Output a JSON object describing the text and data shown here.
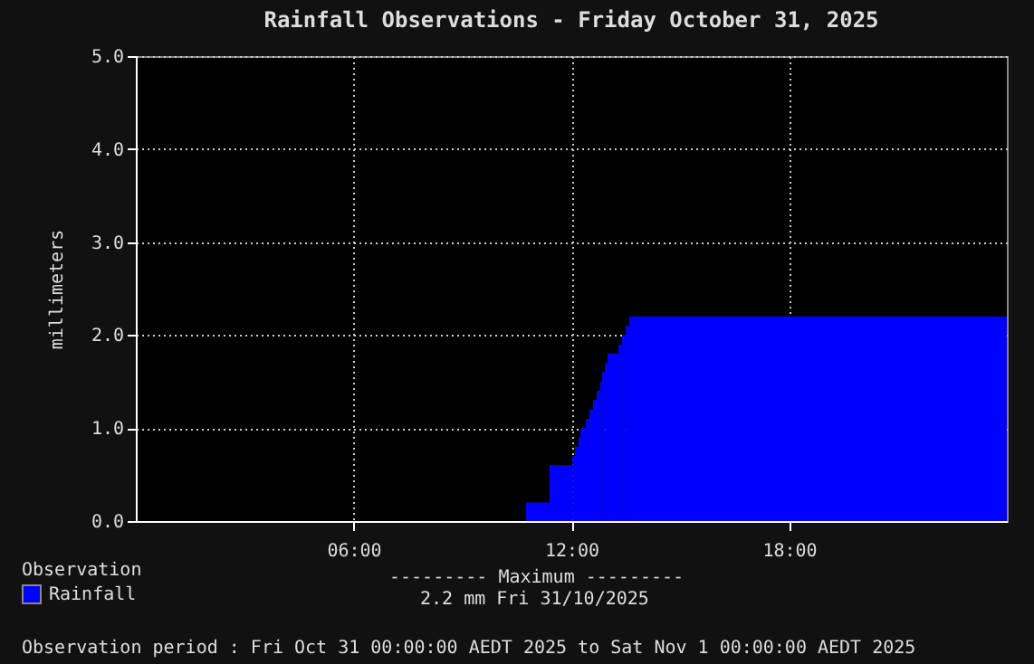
{
  "chart_data": {
    "type": "area",
    "title": "Rainfall Observations - Friday October 31, 2025",
    "ylabel": "millimeters",
    "legend_title": "Observation",
    "legend": "bottom left",
    "line_style": "step",
    "grid": true,
    "x": [
      0,
      10.75,
      11.4,
      12.03,
      12.1,
      12.2,
      12.25,
      12.4,
      12.5,
      12.6,
      12.7,
      12.8,
      12.85,
      12.93,
      13.0,
      13.3,
      13.4,
      13.5,
      13.6,
      24
    ],
    "series": [
      {
        "name": "Rainfall",
        "color": "#0000ff",
        "values": [
          0,
          0.2,
          0.6,
          0.7,
          0.8,
          0.9,
          1.0,
          1.1,
          1.2,
          1.3,
          1.4,
          1.5,
          1.6,
          1.7,
          1.8,
          1.9,
          2.0,
          2.1,
          2.2,
          2.2
        ]
      }
    ],
    "xlim": [
      0,
      24
    ],
    "xticks": [
      {
        "value": 6,
        "label": "06:00"
      },
      {
        "value": 12,
        "label": "12:00"
      },
      {
        "value": 18,
        "label": "18:00"
      }
    ],
    "ylim": [
      0,
      5
    ],
    "yticks": [
      {
        "value": 0,
        "label": "0.0"
      },
      {
        "value": 1,
        "label": "1.0"
      },
      {
        "value": 2,
        "label": "2.0"
      },
      {
        "value": 3,
        "label": "3.0"
      },
      {
        "value": 4,
        "label": "4.0"
      },
      {
        "value": 5,
        "label": "5.0"
      }
    ],
    "annotations": [
      "--------- Maximum ---------",
      "2.2 mm  Fri 31/10/2025",
      "Observation period : Fri Oct 31 00:00:00 AEDT 2025 to Sat Nov 1 00:00:00 AEDT 2025"
    ]
  }
}
